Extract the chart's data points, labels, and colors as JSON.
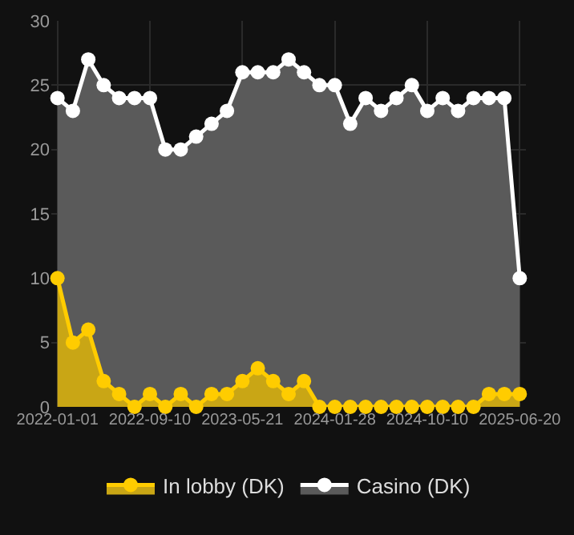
{
  "chart_data": {
    "type": "area",
    "categories": [
      "2022-01-01",
      null,
      null,
      null,
      null,
      null,
      "2022-09-10",
      null,
      null,
      null,
      null,
      null,
      "2023-05-21",
      null,
      null,
      null,
      null,
      null,
      "2024-01-28",
      null,
      null,
      null,
      null,
      null,
      "2024-10-10",
      null,
      null,
      null,
      null,
      null,
      "2025-06-20"
    ],
    "series": [
      {
        "name": "In lobby (DK)",
        "color": "#ffcc00",
        "values": [
          10,
          5,
          6,
          2,
          1,
          0,
          1,
          0,
          1,
          0,
          1,
          1,
          2,
          3,
          2,
          1,
          2,
          0,
          0,
          0,
          0,
          0,
          0,
          0,
          0,
          0,
          0,
          0,
          1,
          1,
          1
        ]
      },
      {
        "name": "Casino (DK)",
        "color": "#ffffff",
        "values": [
          24,
          23,
          27,
          25,
          24,
          24,
          24,
          20,
          20,
          21,
          22,
          23,
          26,
          26,
          26,
          27,
          26,
          25,
          25,
          22,
          24,
          23,
          24,
          25,
          23,
          24,
          23,
          24,
          24,
          24,
          10
        ]
      }
    ],
    "ylim": [
      0,
      30
    ],
    "yticks": [
      0,
      5,
      10,
      15,
      20,
      25,
      30
    ],
    "grid": true,
    "legend": "bottom",
    "marker": "circle",
    "line_style": "solid"
  }
}
